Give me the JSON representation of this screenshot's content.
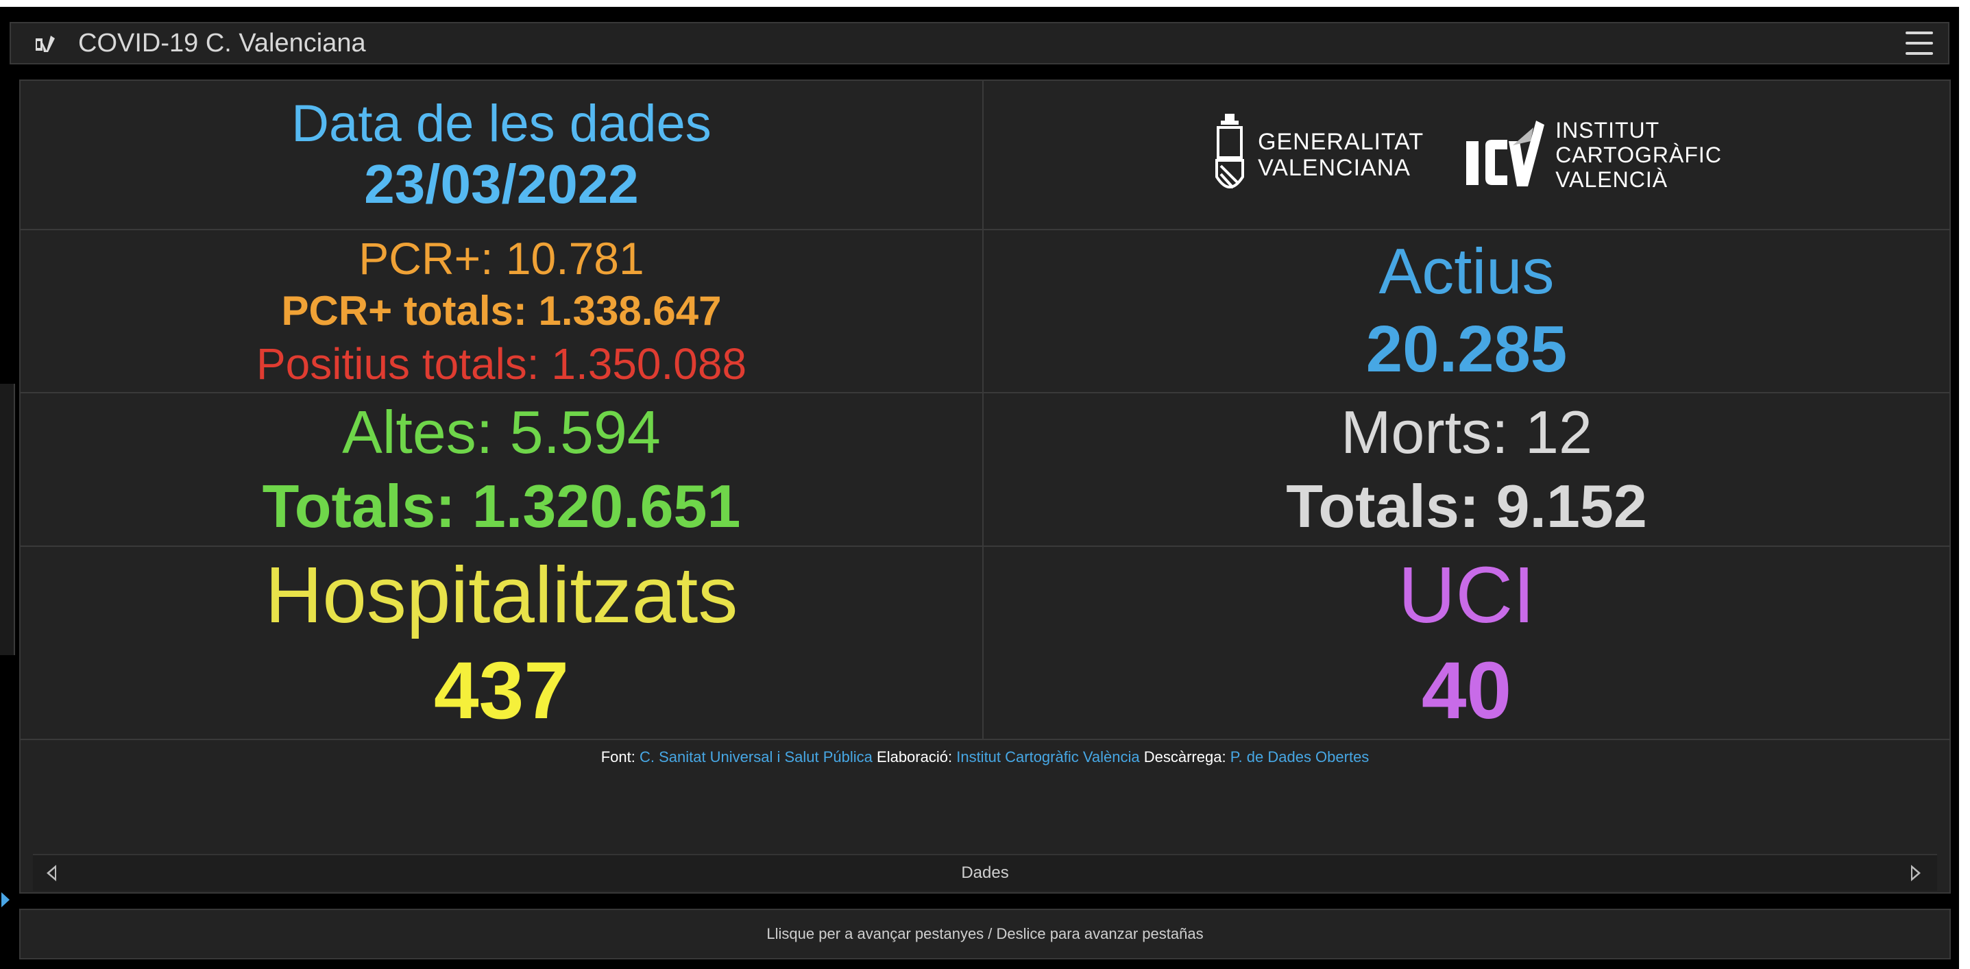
{
  "header": {
    "title": "COVID-19 C. Valenciana",
    "app_icon": "icv-logo-icon",
    "menu_icon": "hamburger-menu-icon"
  },
  "panel": {
    "date_label": "Data de les dades",
    "date_value": "23/03/2022",
    "logos": {
      "gva_line1": "GENERALITAT",
      "gva_line2": "VALENCIANA",
      "icv_line1": "INSTITUT",
      "icv_line2": "CARTOGRÀFIC",
      "icv_line3": "VALENCIÀ"
    },
    "pcr_daily": "PCR+: 10.781",
    "pcr_total": "PCR+ totals: 1.338.647",
    "positive_total": "Positius totals: 1.350.088",
    "active_label": "Actius",
    "active_value": "20.285",
    "discharges_daily": "Altes: 5.594",
    "discharges_total": "Totals: 1.320.651",
    "deaths_daily": "Morts: 12",
    "deaths_total": "Totals: 9.152",
    "hospital_label": "Hospitalitzats",
    "hospital_value": "437",
    "icu_label": "UCI",
    "icu_value": "40"
  },
  "footer": {
    "source_label": "Font:",
    "source_link": "C. Sanitat Universal i Salut Pública",
    "made_label": "Elaboració:",
    "made_link": "Institut Cartogràfic València",
    "download_label": "Descàrrega:",
    "download_link": "P. de Dades Obertes"
  },
  "navigation": {
    "label": "Dades",
    "prev_icon": "triangle-left-icon",
    "next_icon": "triangle-right-icon"
  },
  "hint": {
    "text": "Llisque per a avançar pestanyes / Deslice para avanzar pestañas"
  },
  "colors": {
    "background": "#232323",
    "blue": "#47a7e4",
    "orange": "#f0a236",
    "red": "#e03c31",
    "green": "#6fd64a",
    "yellow": "#f5f03b",
    "purple": "#c86be8"
  }
}
